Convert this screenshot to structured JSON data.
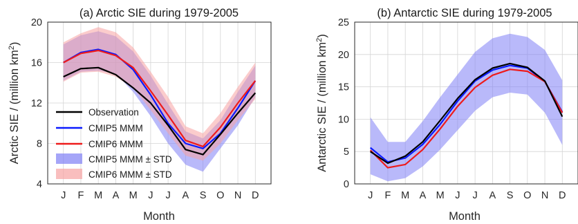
{
  "colors": {
    "observation": "#000000",
    "cmip5": "#0a1aff",
    "cmip6": "#ee1b1b",
    "cmip5_band": "#7f7ff5",
    "cmip6_band": "#f7a3a3"
  },
  "legend": {
    "observation": "Observation",
    "cmip5": "CMIP5 MMM",
    "cmip6": "CMIP6 MMM",
    "cmip5_band": "CMIP5 MMM ± STD",
    "cmip6_band": "CMIP6 MMM ± STD"
  },
  "chart_data": [
    {
      "type": "line",
      "title": "(a) Arctic SIE during 1979-2005",
      "xlabel": "Month",
      "ylabel_main": "Arctic SIE / (million km",
      "ylabel_sup": "2",
      "ylabel_close": ")",
      "categories": [
        "J",
        "F",
        "M",
        "A",
        "M",
        "J",
        "J",
        "A",
        "S",
        "O",
        "N",
        "D"
      ],
      "ylim": [
        4,
        20
      ],
      "yticks": [
        4,
        8,
        12,
        16,
        20
      ],
      "grid": true,
      "legend_position": "lower-left",
      "series": [
        {
          "name": "Observation",
          "values": [
            14.6,
            15.4,
            15.5,
            14.8,
            13.5,
            12.0,
            9.8,
            7.4,
            6.9,
            8.9,
            11.0,
            13.0
          ]
        },
        {
          "name": "CMIP5 MMM",
          "values": [
            16.0,
            17.0,
            17.3,
            16.8,
            15.3,
            12.8,
            10.0,
            8.0,
            7.5,
            9.0,
            11.5,
            14.2
          ]
        },
        {
          "name": "CMIP6 MMM",
          "values": [
            16.0,
            16.9,
            17.2,
            16.7,
            15.5,
            13.2,
            10.8,
            8.3,
            7.7,
            9.6,
            12.0,
            14.2
          ]
        }
      ],
      "bands": [
        {
          "name": "CMIP5 MMM ± STD",
          "lower": [
            14.2,
            15.1,
            15.2,
            14.9,
            13.1,
            10.7,
            8.0,
            5.9,
            5.2,
            7.5,
            9.8,
            12.6
          ],
          "upper": [
            17.8,
            18.7,
            19.1,
            18.6,
            17.1,
            14.7,
            11.9,
            9.2,
            8.5,
            10.3,
            13.1,
            15.7
          ]
        },
        {
          "name": "CMIP6 MMM ± STD",
          "lower": [
            14.1,
            15.0,
            15.1,
            14.6,
            13.5,
            11.3,
            9.0,
            6.8,
            6.3,
            8.0,
            10.3,
            12.4
          ],
          "upper": [
            18.0,
            18.9,
            19.5,
            19.0,
            17.5,
            15.1,
            12.6,
            9.7,
            9.0,
            11.0,
            13.6,
            16.0
          ]
        }
      ]
    },
    {
      "type": "line",
      "title": "(b) Antarctic SIE during 1979-2005",
      "xlabel": "Month",
      "ylabel_main": "Antarctic SIE / (million km",
      "ylabel_sup": "2",
      "ylabel_close": ")",
      "categories": [
        "J",
        "F",
        "M",
        "A",
        "M",
        "J",
        "J",
        "A",
        "S",
        "O",
        "N",
        "D"
      ],
      "ylim": [
        0,
        25
      ],
      "yticks": [
        0,
        5,
        10,
        15,
        20,
        25
      ],
      "grid": true,
      "legend_position": "none",
      "series": [
        {
          "name": "Observation",
          "values": [
            5.0,
            3.2,
            4.3,
            6.5,
            9.8,
            13.2,
            16.1,
            17.9,
            18.6,
            18.0,
            15.9,
            10.4
          ]
        },
        {
          "name": "CMIP5 MMM",
          "values": [
            5.6,
            3.4,
            4.0,
            6.1,
            9.2,
            12.8,
            15.9,
            17.6,
            18.3,
            17.9,
            15.8,
            11.1
          ]
        },
        {
          "name": "CMIP6 MMM",
          "values": [
            5.2,
            2.5,
            3.0,
            5.3,
            8.5,
            12.0,
            14.9,
            16.8,
            17.7,
            17.4,
            15.8,
            11.0
          ]
        }
      ],
      "bands": [
        {
          "name": "CMIP5 MMM ± STD",
          "lower": [
            1.5,
            0.4,
            0.9,
            2.7,
            5.3,
            8.3,
            11.3,
            13.4,
            14.1,
            13.8,
            11.0,
            6.0
          ],
          "upper": [
            10.3,
            6.5,
            6.5,
            9.7,
            13.4,
            16.9,
            20.4,
            22.5,
            23.2,
            22.7,
            20.7,
            16.0
          ]
        },
        {
          "name": "CMIP6 MMM ± STD",
          "lower": [
            2.0,
            0.8,
            0.9,
            2.8,
            5.5,
            8.7,
            11.3,
            13.4,
            14.6,
            14.2,
            12.0,
            7.0
          ]
        }
      ]
    }
  ]
}
